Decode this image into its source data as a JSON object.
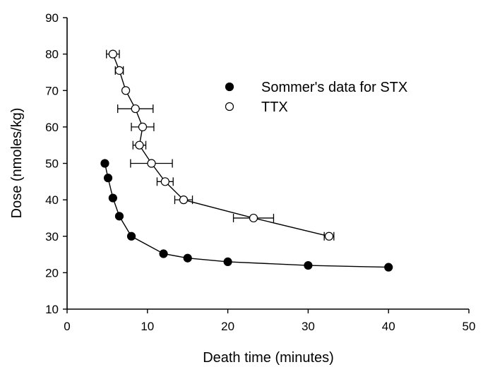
{
  "chart_data": {
    "type": "scatter",
    "title": "",
    "xlabel": "Death time (minutes)",
    "ylabel": "Dose (nmoles/kg)",
    "xlim": [
      0,
      50
    ],
    "ylim": [
      10,
      90
    ],
    "xticks": [
      0,
      10,
      20,
      30,
      40,
      50
    ],
    "yticks": [
      10,
      20,
      30,
      40,
      50,
      60,
      70,
      80,
      90
    ],
    "grid": false,
    "legend_position": "top-right",
    "series": [
      {
        "name": "Sommer's data for STX",
        "marker": "filled-circle",
        "color": "#000000",
        "connected": true,
        "points": [
          {
            "x": 4.7,
            "y": 50
          },
          {
            "x": 5.1,
            "y": 46
          },
          {
            "x": 5.7,
            "y": 40.5
          },
          {
            "x": 6.5,
            "y": 35.5
          },
          {
            "x": 8.0,
            "y": 30
          },
          {
            "x": 12.0,
            "y": 25.2
          },
          {
            "x": 15.0,
            "y": 24
          },
          {
            "x": 20.0,
            "y": 23
          },
          {
            "x": 30.0,
            "y": 22
          },
          {
            "x": 40.0,
            "y": 21.5
          }
        ]
      },
      {
        "name": "TTX",
        "marker": "open-circle",
        "color": "#000000",
        "connected": true,
        "points": [
          {
            "x": 5.7,
            "y": 80,
            "xerr": 0.8
          },
          {
            "x": 6.5,
            "y": 75.5,
            "xerr": 0.5
          },
          {
            "x": 7.3,
            "y": 70,
            "xerr": 0
          },
          {
            "x": 8.5,
            "y": 65,
            "xerr": 2.2
          },
          {
            "x": 9.4,
            "y": 60,
            "xerr": 1.4
          },
          {
            "x": 9.0,
            "y": 55,
            "xerr": 0.8
          },
          {
            "x": 10.5,
            "y": 50,
            "xerr": 2.6
          },
          {
            "x": 12.2,
            "y": 45,
            "xerr": 1.0
          },
          {
            "x": 14.5,
            "y": 40,
            "xerr": 1.1
          },
          {
            "x": 23.2,
            "y": 35,
            "xerr": 2.5
          },
          {
            "x": 32.6,
            "y": 30,
            "xerr": 0.6
          }
        ]
      }
    ]
  }
}
